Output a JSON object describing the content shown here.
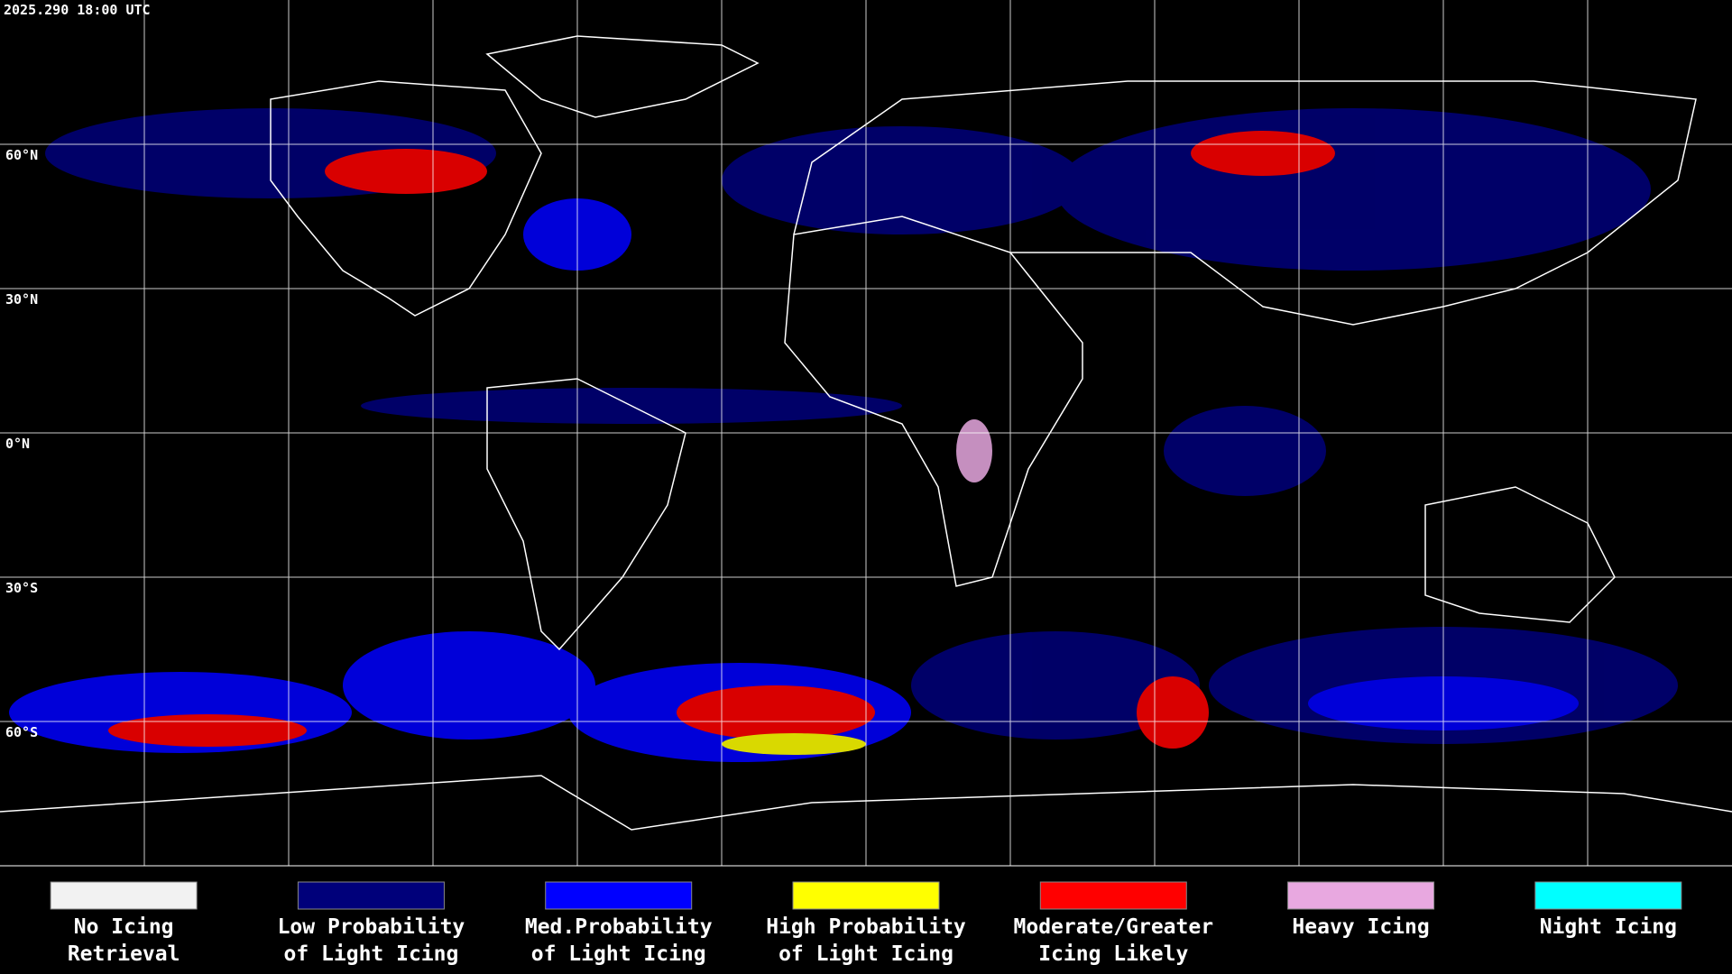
{
  "header": {
    "title": "2025.290 18:00 UTC"
  },
  "map": {
    "latitude_labels": [
      "60°N",
      "30°N",
      "0°N",
      "30°S",
      "60°S"
    ]
  },
  "legend": {
    "items": [
      {
        "lines": [
          "No Icing",
          "Retrieval"
        ],
        "color": "#f2f2f2"
      },
      {
        "lines": [
          "Low Probability",
          "of Light Icing"
        ],
        "color": "#00007a"
      },
      {
        "lines": [
          "Med.Probability",
          "of Light Icing"
        ],
        "color": "#0000ff"
      },
      {
        "lines": [
          "High Probability",
          "of Light Icing"
        ],
        "color": "#ffff00"
      },
      {
        "lines": [
          "Moderate/Greater",
          "Icing Likely"
        ],
        "color": "#ff0000"
      },
      {
        "lines": [
          "Heavy Icing"
        ],
        "color": "#e8a8e0"
      },
      {
        "lines": [
          "Night Icing"
        ],
        "color": "#00ffff"
      }
    ]
  }
}
